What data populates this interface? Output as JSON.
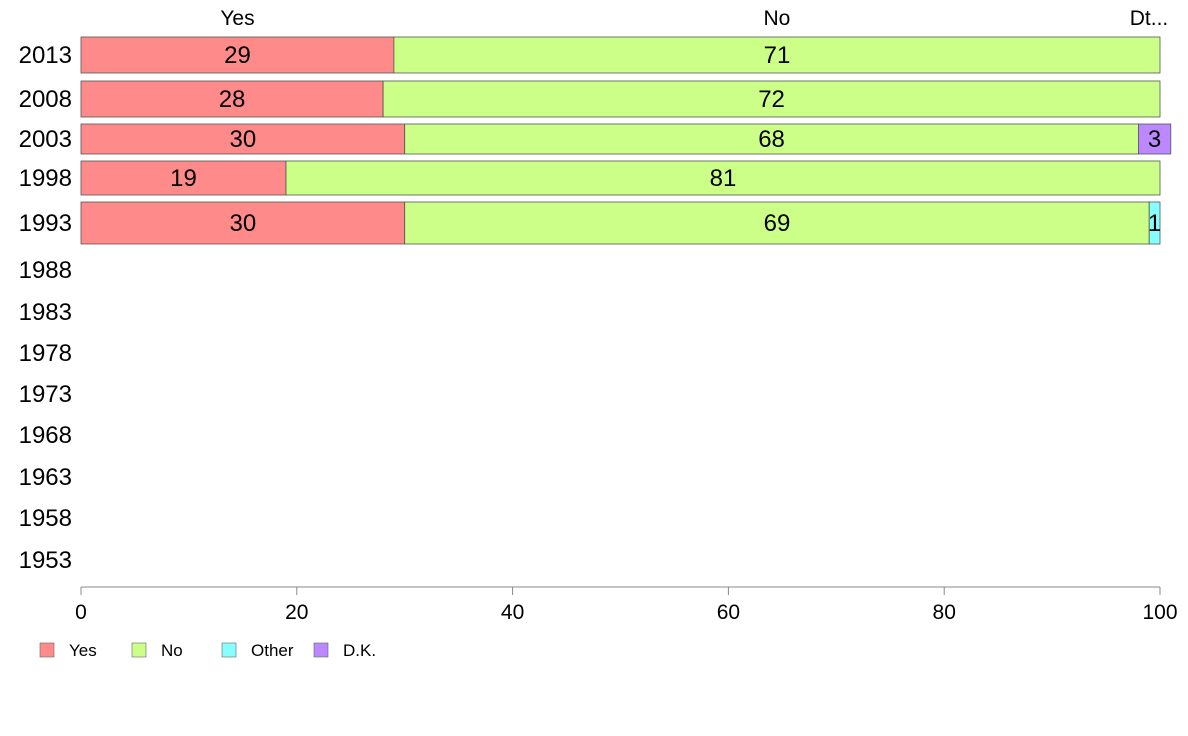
{
  "chart_data": {
    "type": "bar",
    "orientation": "horizontal",
    "stacked": true,
    "categories": [
      "2013",
      "2008",
      "2003",
      "1998",
      "1993",
      "1988",
      "1983",
      "1978",
      "1973",
      "1968",
      "1963",
      "1958",
      "1953"
    ],
    "series": [
      {
        "name": "Yes",
        "color": "#ff8a8a",
        "values": [
          29,
          28,
          30,
          19,
          30,
          null,
          null,
          null,
          null,
          null,
          null,
          null,
          null
        ],
        "labels": [
          "29",
          "28",
          "30",
          "19",
          "30"
        ]
      },
      {
        "name": "No",
        "color": "#ccff88",
        "values": [
          71,
          72,
          68,
          81,
          69,
          null,
          null,
          null,
          null,
          null,
          null,
          null,
          null
        ],
        "labels": [
          "71",
          "72",
          "68",
          "81",
          "69"
        ]
      },
      {
        "name": "Other",
        "color": "#88ffff",
        "values": [
          0,
          0,
          0,
          0,
          1,
          null,
          null,
          null,
          null,
          null,
          null,
          null,
          null
        ],
        "labels": [
          "",
          "",
          "",
          "",
          "1"
        ]
      },
      {
        "name": "D.K.",
        "color": "#bb88ff",
        "values": [
          0,
          0,
          3,
          0,
          0,
          null,
          null,
          null,
          null,
          null,
          null,
          null,
          null
        ],
        "labels": [
          "",
          "",
          "3",
          "",
          ""
        ]
      }
    ],
    "top_labels": [
      "Yes",
      "No",
      "Dt..."
    ],
    "x_ticks": [
      "0",
      "20",
      "40",
      "60",
      "80",
      "100"
    ],
    "xlim": [
      0,
      100
    ],
    "grid": false,
    "legend_position": "bottom-left"
  }
}
